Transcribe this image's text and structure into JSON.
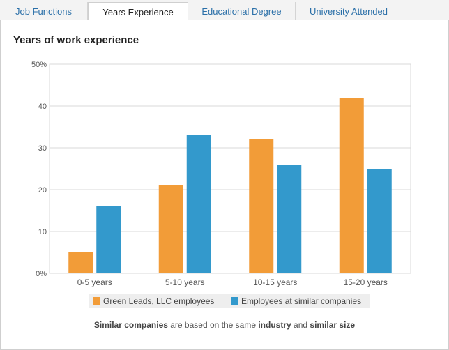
{
  "tabs": [
    {
      "label": "Job Functions",
      "active": false
    },
    {
      "label": "Years Experience",
      "active": true
    },
    {
      "label": "Educational Degree",
      "active": false
    },
    {
      "label": "University Attended",
      "active": false
    }
  ],
  "colors": {
    "series_company": "#f29c38",
    "series_similar": "#3399cc",
    "grid": "#d9d9d9",
    "axis_text": "#555555"
  },
  "chart_data": {
    "type": "bar",
    "title": "Years of work experience",
    "categories": [
      "0-5 years",
      "5-10 years",
      "10-15 years",
      "15-20 years"
    ],
    "series": [
      {
        "name": "Green Leads, LLC employees",
        "values": [
          5,
          21,
          32,
          42
        ]
      },
      {
        "name": "Employees at similar companies",
        "values": [
          16,
          33,
          26,
          25
        ]
      }
    ],
    "ylim": [
      0,
      50
    ],
    "yticks": [
      "0%",
      "10",
      "20",
      "30",
      "40",
      "50%"
    ],
    "ytick_values": [
      0,
      10,
      20,
      30,
      40,
      50
    ],
    "grid": true,
    "legend_position": "bottom"
  },
  "footnote": {
    "p1": "Similar companies",
    "p2": " are based on the same ",
    "p3": "industry",
    "p4": " and ",
    "p5": "similar size"
  }
}
